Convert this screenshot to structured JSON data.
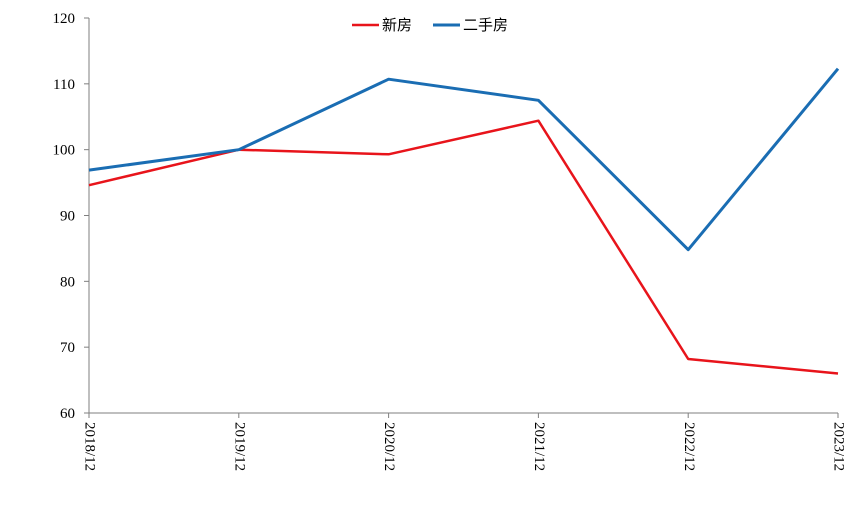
{
  "chart_data": {
    "type": "line",
    "categories": [
      "2018/12",
      "2019/12",
      "2020/12",
      "2021/12",
      "2022/12",
      "2023/12"
    ],
    "series": [
      {
        "name": "新房",
        "color": "#e8141b",
        "values": [
          94.6,
          100.0,
          99.3,
          104.4,
          68.2,
          66.0
        ]
      },
      {
        "name": "二手房",
        "color": "#1a6db3",
        "values": [
          96.9,
          100.0,
          110.7,
          107.5,
          84.8,
          112.3
        ]
      }
    ],
    "ylim": [
      60,
      120
    ],
    "yticks": [
      60,
      70,
      80,
      90,
      100,
      110,
      120
    ],
    "grid": false,
    "legend": "top-center"
  }
}
